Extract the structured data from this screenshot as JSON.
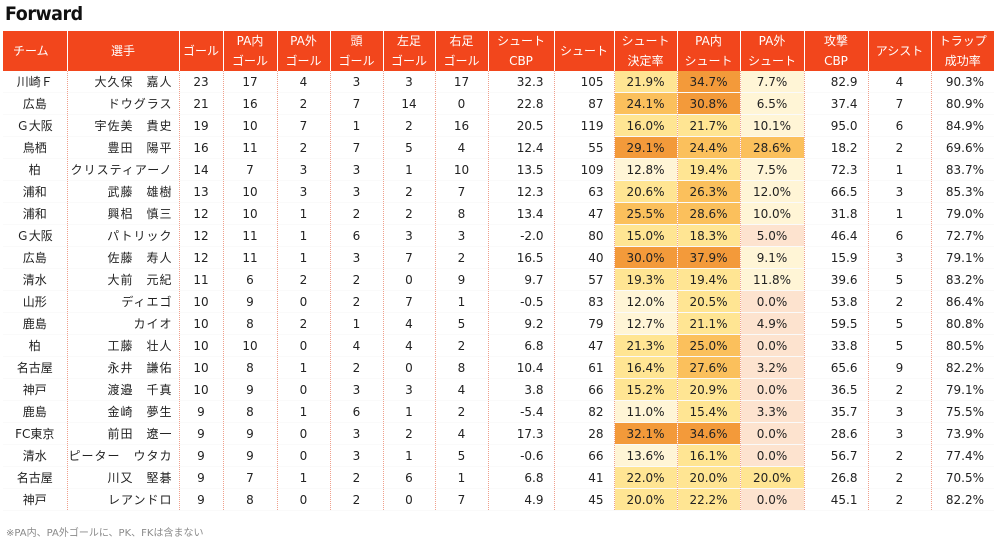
{
  "title": "Forward",
  "footnote": "※PA内、PA外ゴールに、PK、FKは含まない",
  "columns": [
    {
      "line1": "チーム",
      "line2": ""
    },
    {
      "line1": "選手",
      "line2": ""
    },
    {
      "line1": "ゴール",
      "line2": ""
    },
    {
      "line1": "PA内",
      "line2": "ゴール"
    },
    {
      "line1": "PA外",
      "line2": "ゴール"
    },
    {
      "line1": "頭",
      "line2": "ゴール"
    },
    {
      "line1": "左足",
      "line2": "ゴール"
    },
    {
      "line1": "右足",
      "line2": "ゴール"
    },
    {
      "line1": "シュート",
      "line2": "CBP"
    },
    {
      "line1": "シュート",
      "line2": ""
    },
    {
      "line1": "シュート",
      "line2": "決定率"
    },
    {
      "line1": "PA内",
      "line2": "シュート"
    },
    {
      "line1": "PA外",
      "line2": "シュート"
    },
    {
      "line1": "攻撃",
      "line2": "CBP"
    },
    {
      "line1": "アシスト",
      "line2": ""
    },
    {
      "line1": "トラップ",
      "line2": "成功率"
    }
  ],
  "heat_colors": {
    "very_low": "#fde3cf",
    "low": "#fff5d6",
    "mid": "#ffe593",
    "high": "#fbc05c",
    "very_high": "#f39a3a"
  },
  "rows": [
    {
      "team": "川崎Ｆ",
      "player": "大久保　嘉人",
      "goals": "23",
      "pa_in_goals": "17",
      "pa_out_goals": "4",
      "head_goals": "3",
      "left_goals": "3",
      "right_goals": "17",
      "shot_cbp": "32.3",
      "shots": "105",
      "conversion": "21.9%",
      "pa_in_shot": "34.7%",
      "pa_out_shot": "7.7%",
      "attack_cbp": "82.9",
      "assists": "4",
      "trap": "90.3%"
    },
    {
      "team": "広島",
      "player": "ドウグラス",
      "goals": "21",
      "pa_in_goals": "16",
      "pa_out_goals": "2",
      "head_goals": "7",
      "left_goals": "14",
      "right_goals": "0",
      "shot_cbp": "22.8",
      "shots": "87",
      "conversion": "24.1%",
      "pa_in_shot": "30.8%",
      "pa_out_shot": "6.5%",
      "attack_cbp": "37.4",
      "assists": "7",
      "trap": "80.9%"
    },
    {
      "team": "Ｇ大阪",
      "player": "宇佐美　貴史",
      "goals": "19",
      "pa_in_goals": "10",
      "pa_out_goals": "7",
      "head_goals": "1",
      "left_goals": "2",
      "right_goals": "16",
      "shot_cbp": "20.5",
      "shots": "119",
      "conversion": "16.0%",
      "pa_in_shot": "21.7%",
      "pa_out_shot": "10.1%",
      "attack_cbp": "95.0",
      "assists": "6",
      "trap": "84.9%"
    },
    {
      "team": "鳥栖",
      "player": "豊田　陽平",
      "goals": "16",
      "pa_in_goals": "11",
      "pa_out_goals": "2",
      "head_goals": "7",
      "left_goals": "5",
      "right_goals": "4",
      "shot_cbp": "12.4",
      "shots": "55",
      "conversion": "29.1%",
      "pa_in_shot": "24.4%",
      "pa_out_shot": "28.6%",
      "attack_cbp": "18.2",
      "assists": "2",
      "trap": "69.6%"
    },
    {
      "team": "柏",
      "player": "クリスティアーノ",
      "goals": "14",
      "pa_in_goals": "7",
      "pa_out_goals": "3",
      "head_goals": "3",
      "left_goals": "1",
      "right_goals": "10",
      "shot_cbp": "13.5",
      "shots": "109",
      "conversion": "12.8%",
      "pa_in_shot": "19.4%",
      "pa_out_shot": "7.5%",
      "attack_cbp": "72.3",
      "assists": "1",
      "trap": "83.7%"
    },
    {
      "team": "浦和",
      "player": "武藤　雄樹",
      "goals": "13",
      "pa_in_goals": "10",
      "pa_out_goals": "3",
      "head_goals": "3",
      "left_goals": "2",
      "right_goals": "7",
      "shot_cbp": "12.3",
      "shots": "63",
      "conversion": "20.6%",
      "pa_in_shot": "26.3%",
      "pa_out_shot": "12.0%",
      "attack_cbp": "66.5",
      "assists": "3",
      "trap": "85.3%"
    },
    {
      "team": "浦和",
      "player": "興梠　慎三",
      "goals": "12",
      "pa_in_goals": "10",
      "pa_out_goals": "1",
      "head_goals": "2",
      "left_goals": "2",
      "right_goals": "8",
      "shot_cbp": "13.4",
      "shots": "47",
      "conversion": "25.5%",
      "pa_in_shot": "28.6%",
      "pa_out_shot": "10.0%",
      "attack_cbp": "31.8",
      "assists": "1",
      "trap": "79.0%"
    },
    {
      "team": "Ｇ大阪",
      "player": "パトリック",
      "goals": "12",
      "pa_in_goals": "11",
      "pa_out_goals": "1",
      "head_goals": "6",
      "left_goals": "3",
      "right_goals": "3",
      "shot_cbp": "-2.0",
      "shots": "80",
      "conversion": "15.0%",
      "pa_in_shot": "18.3%",
      "pa_out_shot": "5.0%",
      "attack_cbp": "46.4",
      "assists": "6",
      "trap": "72.7%"
    },
    {
      "team": "広島",
      "player": "佐藤　寿人",
      "goals": "12",
      "pa_in_goals": "11",
      "pa_out_goals": "1",
      "head_goals": "3",
      "left_goals": "7",
      "right_goals": "2",
      "shot_cbp": "16.5",
      "shots": "40",
      "conversion": "30.0%",
      "pa_in_shot": "37.9%",
      "pa_out_shot": "9.1%",
      "attack_cbp": "15.9",
      "assists": "3",
      "trap": "79.1%"
    },
    {
      "team": "清水",
      "player": "大前　元紀",
      "goals": "11",
      "pa_in_goals": "6",
      "pa_out_goals": "2",
      "head_goals": "2",
      "left_goals": "0",
      "right_goals": "9",
      "shot_cbp": "9.7",
      "shots": "57",
      "conversion": "19.3%",
      "pa_in_shot": "19.4%",
      "pa_out_shot": "11.8%",
      "attack_cbp": "39.6",
      "assists": "5",
      "trap": "83.2%"
    },
    {
      "team": "山形",
      "player": "ディエゴ",
      "goals": "10",
      "pa_in_goals": "9",
      "pa_out_goals": "0",
      "head_goals": "2",
      "left_goals": "7",
      "right_goals": "1",
      "shot_cbp": "-0.5",
      "shots": "83",
      "conversion": "12.0%",
      "pa_in_shot": "20.5%",
      "pa_out_shot": "0.0%",
      "attack_cbp": "53.8",
      "assists": "2",
      "trap": "86.4%"
    },
    {
      "team": "鹿島",
      "player": "カイオ",
      "goals": "10",
      "pa_in_goals": "8",
      "pa_out_goals": "2",
      "head_goals": "1",
      "left_goals": "4",
      "right_goals": "5",
      "shot_cbp": "9.2",
      "shots": "79",
      "conversion": "12.7%",
      "pa_in_shot": "21.1%",
      "pa_out_shot": "4.9%",
      "attack_cbp": "59.5",
      "assists": "5",
      "trap": "80.8%"
    },
    {
      "team": "柏",
      "player": "工藤　壮人",
      "goals": "10",
      "pa_in_goals": "10",
      "pa_out_goals": "0",
      "head_goals": "4",
      "left_goals": "4",
      "right_goals": "2",
      "shot_cbp": "6.8",
      "shots": "47",
      "conversion": "21.3%",
      "pa_in_shot": "25.0%",
      "pa_out_shot": "0.0%",
      "attack_cbp": "33.8",
      "assists": "5",
      "trap": "80.5%"
    },
    {
      "team": "名古屋",
      "player": "永井　謙佑",
      "goals": "10",
      "pa_in_goals": "8",
      "pa_out_goals": "1",
      "head_goals": "2",
      "left_goals": "0",
      "right_goals": "8",
      "shot_cbp": "10.4",
      "shots": "61",
      "conversion": "16.4%",
      "pa_in_shot": "27.6%",
      "pa_out_shot": "3.2%",
      "attack_cbp": "65.6",
      "assists": "9",
      "trap": "82.2%"
    },
    {
      "team": "神戸",
      "player": "渡邉　千真",
      "goals": "10",
      "pa_in_goals": "9",
      "pa_out_goals": "0",
      "head_goals": "3",
      "left_goals": "3",
      "right_goals": "4",
      "shot_cbp": "3.8",
      "shots": "66",
      "conversion": "15.2%",
      "pa_in_shot": "20.9%",
      "pa_out_shot": "0.0%",
      "attack_cbp": "36.5",
      "assists": "2",
      "trap": "79.1%"
    },
    {
      "team": "鹿島",
      "player": "金崎　夢生",
      "goals": "9",
      "pa_in_goals": "8",
      "pa_out_goals": "1",
      "head_goals": "6",
      "left_goals": "1",
      "right_goals": "2",
      "shot_cbp": "-5.4",
      "shots": "82",
      "conversion": "11.0%",
      "pa_in_shot": "15.4%",
      "pa_out_shot": "3.3%",
      "attack_cbp": "35.7",
      "assists": "3",
      "trap": "75.5%"
    },
    {
      "team": "FC東京",
      "player": "前田　遼一",
      "goals": "9",
      "pa_in_goals": "9",
      "pa_out_goals": "0",
      "head_goals": "3",
      "left_goals": "2",
      "right_goals": "4",
      "shot_cbp": "17.3",
      "shots": "28",
      "conversion": "32.1%",
      "pa_in_shot": "34.6%",
      "pa_out_shot": "0.0%",
      "attack_cbp": "28.6",
      "assists": "3",
      "trap": "73.9%"
    },
    {
      "team": "清水",
      "player": "ピーター　ウタカ",
      "goals": "9",
      "pa_in_goals": "9",
      "pa_out_goals": "0",
      "head_goals": "3",
      "left_goals": "1",
      "right_goals": "5",
      "shot_cbp": "-0.6",
      "shots": "66",
      "conversion": "13.6%",
      "pa_in_shot": "16.1%",
      "pa_out_shot": "0.0%",
      "attack_cbp": "56.7",
      "assists": "2",
      "trap": "77.4%"
    },
    {
      "team": "名古屋",
      "player": "川又　堅碁",
      "goals": "9",
      "pa_in_goals": "7",
      "pa_out_goals": "1",
      "head_goals": "2",
      "left_goals": "6",
      "right_goals": "1",
      "shot_cbp": "6.8",
      "shots": "41",
      "conversion": "22.0%",
      "pa_in_shot": "20.0%",
      "pa_out_shot": "20.0%",
      "attack_cbp": "26.8",
      "assists": "2",
      "trap": "70.5%"
    },
    {
      "team": "神戸",
      "player": "レアンドロ",
      "goals": "9",
      "pa_in_goals": "8",
      "pa_out_goals": "0",
      "head_goals": "2",
      "left_goals": "0",
      "right_goals": "7",
      "shot_cbp": "4.9",
      "shots": "45",
      "conversion": "20.0%",
      "pa_in_shot": "22.2%",
      "pa_out_shot": "0.0%",
      "attack_cbp": "45.1",
      "assists": "2",
      "trap": "82.2%"
    }
  ]
}
